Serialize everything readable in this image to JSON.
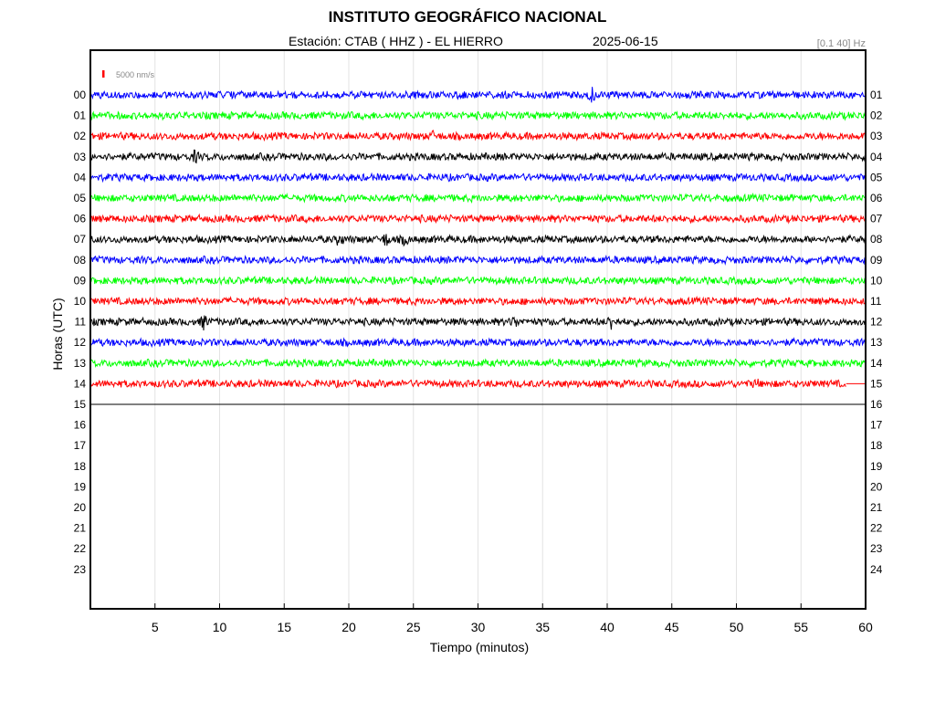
{
  "header": {
    "title": "INSTITUTO GEOGRÁFICO NACIONAL",
    "station": "Estación:  CTAB ( HHZ ) - EL HIERRO",
    "date": "2025-06-15",
    "filter": "[0.1 40] Hz"
  },
  "chart_data": {
    "type": "line",
    "title": "INSTITUTO GEOGRÁFICO NACIONAL",
    "xlabel": "Tiempo (minutos)",
    "ylabel": "Horas (UTC)",
    "xlim": [
      0,
      60
    ],
    "x_ticks": [
      5,
      10,
      15,
      20,
      25,
      30,
      35,
      40,
      45,
      50,
      55,
      60
    ],
    "left_labels": [
      "00",
      "01",
      "02",
      "03",
      "04",
      "05",
      "06",
      "07",
      "08",
      "09",
      "10",
      "11",
      "12",
      "13",
      "14",
      "15",
      "16",
      "17",
      "18",
      "19",
      "20",
      "21",
      "22",
      "23"
    ],
    "right_labels": [
      "01",
      "02",
      "03",
      "04",
      "05",
      "06",
      "07",
      "08",
      "09",
      "10",
      "11",
      "12",
      "13",
      "14",
      "15",
      "16",
      "17",
      "18",
      "19",
      "20",
      "21",
      "22",
      "23",
      "24"
    ],
    "scale_label": "5000 nm/s",
    "grid": true,
    "traces": [
      {
        "hour": "00",
        "color": "#0000ff",
        "end_minute": 60
      },
      {
        "hour": "01",
        "color": "#00ff00",
        "end_minute": 60
      },
      {
        "hour": "02",
        "color": "#ff0000",
        "end_minute": 60
      },
      {
        "hour": "03",
        "color": "#000000",
        "end_minute": 60
      },
      {
        "hour": "04",
        "color": "#0000ff",
        "end_minute": 60
      },
      {
        "hour": "05",
        "color": "#00ff00",
        "end_minute": 60
      },
      {
        "hour": "06",
        "color": "#ff0000",
        "end_minute": 60
      },
      {
        "hour": "07",
        "color": "#000000",
        "end_minute": 60
      },
      {
        "hour": "08",
        "color": "#0000ff",
        "end_minute": 60
      },
      {
        "hour": "09",
        "color": "#00ff00",
        "end_minute": 60
      },
      {
        "hour": "10",
        "color": "#ff0000",
        "end_minute": 60
      },
      {
        "hour": "11",
        "color": "#000000",
        "end_minute": 60
      },
      {
        "hour": "12",
        "color": "#0000ff",
        "end_minute": 60
      },
      {
        "hour": "13",
        "color": "#00ff00",
        "end_minute": 60
      },
      {
        "hour": "14",
        "color": "#ff0000",
        "end_minute": 58.5
      },
      {
        "hour": "15",
        "color": "#000000",
        "end_minute": 60
      }
    ]
  }
}
